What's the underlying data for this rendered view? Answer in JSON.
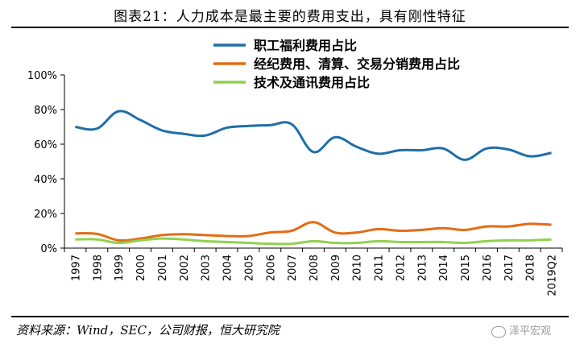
{
  "header": {
    "title": "图表21：人力成本是最主要的费用支出，具有刚性特征"
  },
  "footer": {
    "source": "资料来源：Wind，SEC，公司财报，恒大研究院",
    "watermark": "泽平宏观"
  },
  "chart_data": {
    "type": "line",
    "categories": [
      "1997",
      "1998",
      "1999",
      "2000",
      "2001",
      "2002",
      "2003",
      "2004",
      "2005",
      "2006",
      "2007",
      "2008",
      "2009",
      "2010",
      "2011",
      "2012",
      "2013",
      "2014",
      "2015",
      "2016",
      "2017",
      "2018",
      "2019Q2"
    ],
    "ylim": [
      0,
      100
    ],
    "yticks": [
      "0%",
      "20%",
      "40%",
      "60%",
      "80%",
      "100%"
    ],
    "series": [
      {
        "name": "职工福利费用占比",
        "color": "#1f6fa8",
        "values": [
          70,
          69,
          79,
          74,
          68,
          66,
          65,
          69.5,
          70.5,
          71,
          71.5,
          55.5,
          64,
          58.5,
          54.5,
          56.5,
          56.5,
          57.5,
          51,
          57.5,
          57,
          53,
          55
        ]
      },
      {
        "name": "经纪费用、清算、交易分销费用占比",
        "color": "#e46c14",
        "values": [
          8.5,
          8.2,
          4.5,
          5.5,
          7.5,
          8,
          7.5,
          7,
          7,
          9,
          10,
          15,
          9,
          9,
          11,
          10,
          10.5,
          11.5,
          10.5,
          12.5,
          12.5,
          14,
          13.5
        ]
      },
      {
        "name": "技术及通讯费用占比",
        "color": "#92d050",
        "values": [
          5,
          5,
          3,
          4.5,
          5.5,
          5,
          4,
          3.5,
          3,
          2.5,
          2.5,
          4,
          3,
          3,
          4,
          3.5,
          3.5,
          3.5,
          3,
          4,
          4.5,
          4.5,
          5
        ]
      }
    ],
    "legend_position": "top"
  }
}
